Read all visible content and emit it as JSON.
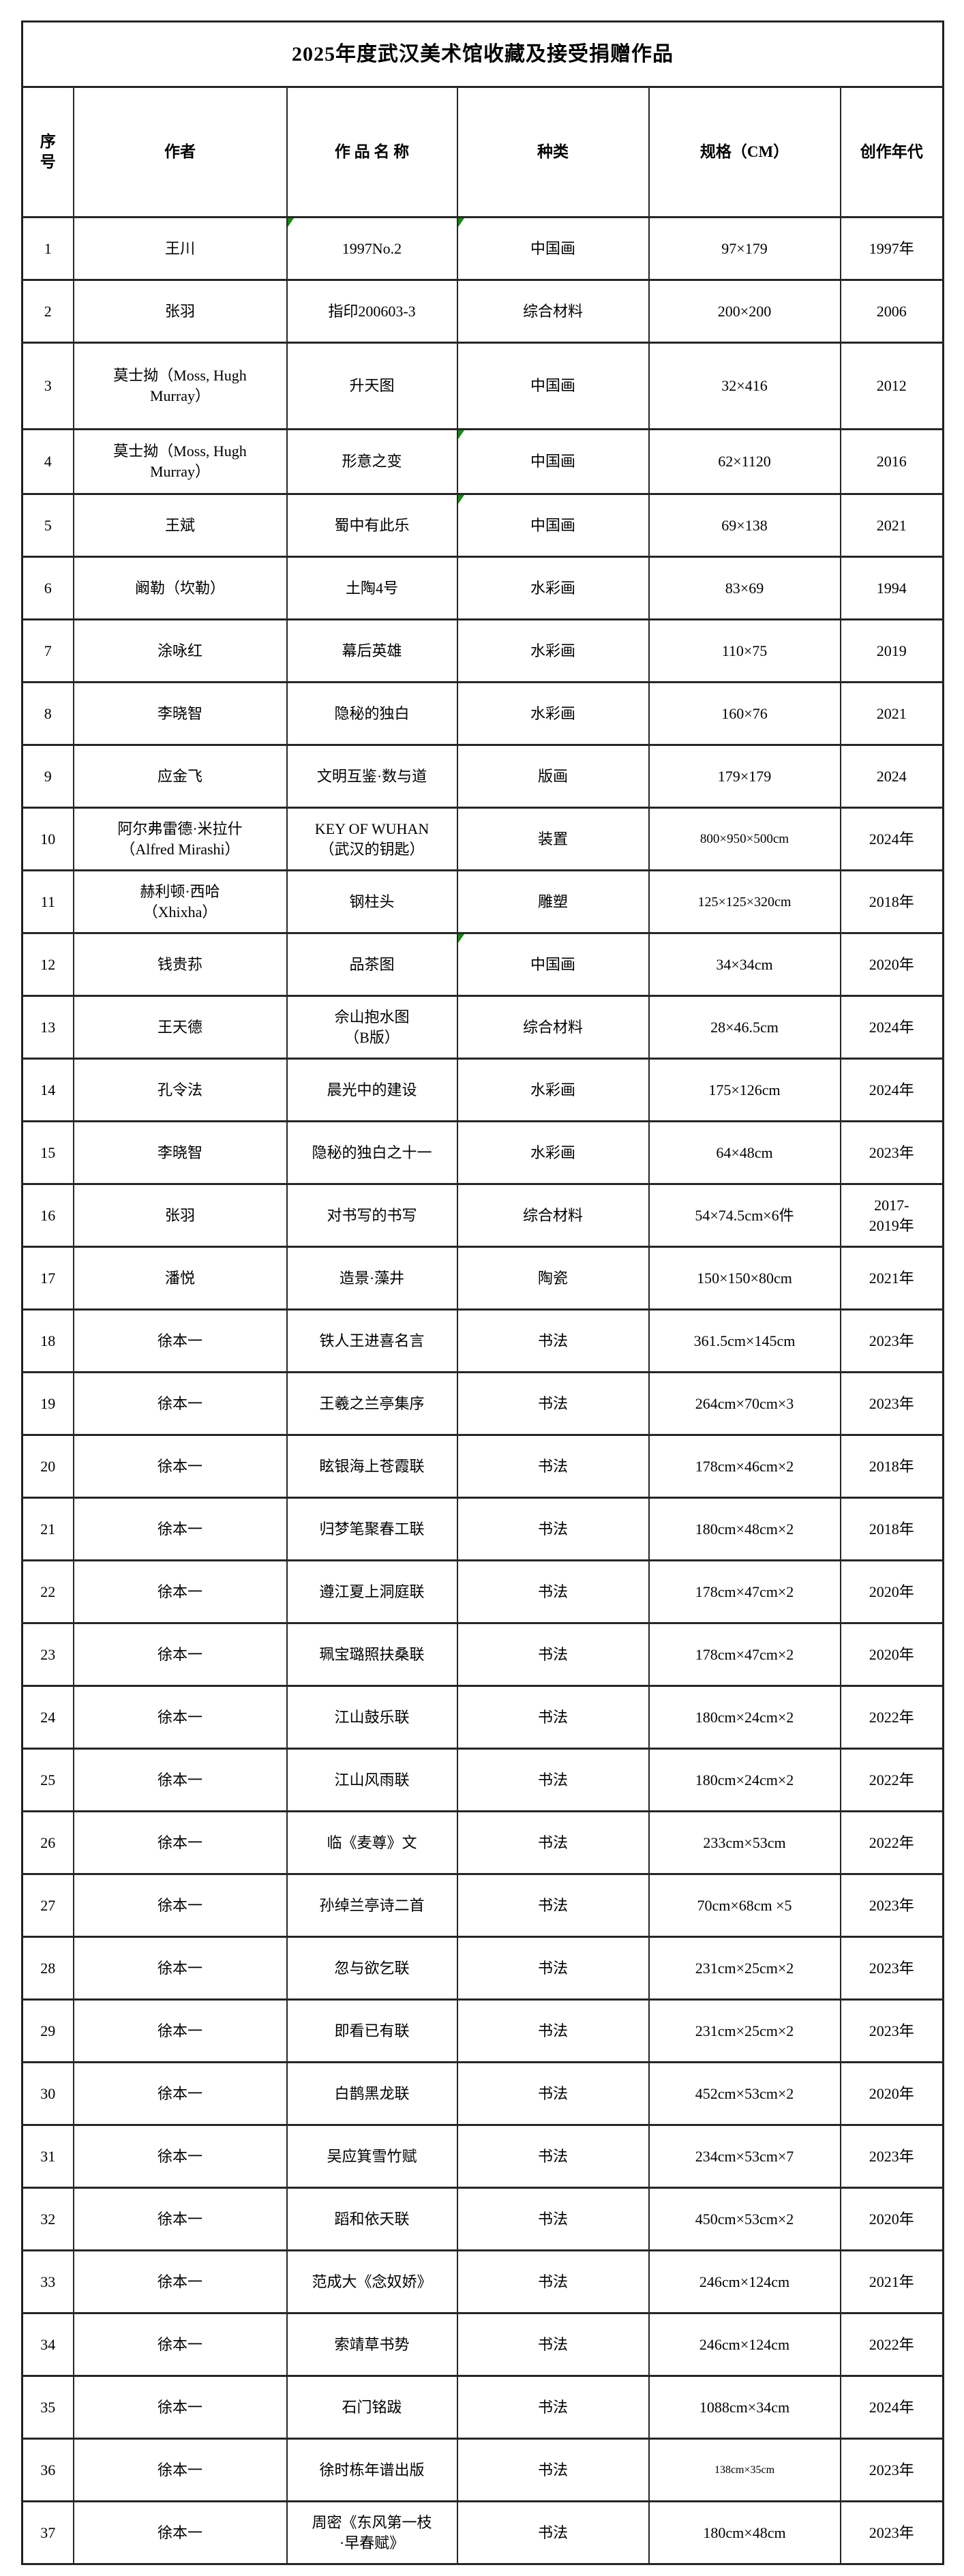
{
  "title": "2025年度武汉美术馆收藏及接受捐赠作品",
  "colors": {
    "background": "#ffffff",
    "border": "#262626",
    "text": "#000000",
    "corner_mark_green": "#168a16"
  },
  "table": {
    "columns": [
      "序\n号",
      "作者",
      "作 品 名 称",
      "种类",
      "规格（CM）",
      "创作年代"
    ],
    "rows": [
      {
        "no": "1",
        "author": "王川",
        "name": "1997No.2",
        "type": "中国画",
        "spec": "97×179",
        "year": "1997年"
      },
      {
        "no": "2",
        "author": "张羽",
        "name": "指印200603-3",
        "type": "综合材料",
        "spec": "200×200",
        "year": "2006"
      },
      {
        "no": "3",
        "author": "莫士拗（Moss, Hugh\nMurray）",
        "name": "升天图",
        "type": "中国画",
        "spec": "32×416",
        "year": "2012"
      },
      {
        "no": "4",
        "author": "莫士拗（Moss, Hugh\nMurray）",
        "name": "形意之变",
        "type": "中国画",
        "spec": "62×1120",
        "year": "2016"
      },
      {
        "no": "5",
        "author": "王斌",
        "name": "蜀中有此乐",
        "type": "中国画",
        "spec": "69×138",
        "year": "2021"
      },
      {
        "no": "6",
        "author": "阚勒（坎勒）",
        "name": "土陶4号",
        "type": "水彩画",
        "spec": "83×69",
        "year": "1994"
      },
      {
        "no": "7",
        "author": "涂咏红",
        "name": "幕后英雄",
        "type": "水彩画",
        "spec": "110×75",
        "year": "2019"
      },
      {
        "no": "8",
        "author": "李晓智",
        "name": "隐秘的独白",
        "type": "水彩画",
        "spec": "160×76",
        "year": "2021"
      },
      {
        "no": "9",
        "author": "应金飞",
        "name": "文明互鉴·数与道",
        "type": "版画",
        "spec": "179×179",
        "year": "2024"
      },
      {
        "no": "10",
        "author": "阿尔弗雷德·米拉什\n（Alfred Mirashi）",
        "name": "KEY OF WUHAN\n（武汉的钥匙）",
        "type": "装置",
        "spec": "800×950×500cm",
        "year": "2024年"
      },
      {
        "no": "11",
        "author": "赫利顿·西哈\n（Xhixha）",
        "name": "钢柱头",
        "type": "雕塑",
        "spec": "125×125×320cm",
        "year": "2018年"
      },
      {
        "no": "12",
        "author": "钱贵荪",
        "name": "品茶图",
        "type": "中国画",
        "spec": "34×34cm",
        "year": "2020年"
      },
      {
        "no": "13",
        "author": "王天德",
        "name": "佘山抱水图\n（B版）",
        "type": "综合材料",
        "spec": "28×46.5cm",
        "year": "2024年"
      },
      {
        "no": "14",
        "author": "孔令法",
        "name": "晨光中的建设",
        "type": "水彩画",
        "spec": "175×126cm",
        "year": "2024年"
      },
      {
        "no": "15",
        "author": "李晓智",
        "name": "隐秘的独白之十一",
        "type": "水彩画",
        "spec": "64×48cm",
        "year": "2023年"
      },
      {
        "no": "16",
        "author": "张羽",
        "name": "对书写的书写",
        "type": "综合材料",
        "spec": "54×74.5cm×6件",
        "year": "2017-\n2019年"
      },
      {
        "no": "17",
        "author": "潘悦",
        "name": "造景·藻井",
        "type": "陶瓷",
        "spec": "150×150×80cm",
        "year": "2021年"
      },
      {
        "no": "18",
        "author": "徐本一",
        "name": "铁人王进喜名言",
        "type": "书法",
        "spec": "361.5cm×145cm",
        "year": "2023年"
      },
      {
        "no": "19",
        "author": "徐本一",
        "name": "王羲之兰亭集序",
        "type": "书法",
        "spec": "264cm×70cm×3",
        "year": "2023年"
      },
      {
        "no": "20",
        "author": "徐本一",
        "name": "眩银海上苍霞联",
        "type": "书法",
        "spec": "178cm×46cm×2",
        "year": "2018年"
      },
      {
        "no": "21",
        "author": "徐本一",
        "name": "归梦笔聚春工联",
        "type": "书法",
        "spec": "180cm×48cm×2",
        "year": "2018年"
      },
      {
        "no": "22",
        "author": "徐本一",
        "name": "遵江夏上洞庭联",
        "type": "书法",
        "spec": "178cm×47cm×2",
        "year": "2020年"
      },
      {
        "no": "23",
        "author": "徐本一",
        "name": "珮宝璐照扶桑联",
        "type": "书法",
        "spec": "178cm×47cm×2",
        "year": "2020年"
      },
      {
        "no": "24",
        "author": "徐本一",
        "name": "江山鼓乐联",
        "type": "书法",
        "spec": "180cm×24cm×2",
        "year": "2022年"
      },
      {
        "no": "25",
        "author": "徐本一",
        "name": "江山风雨联",
        "type": "书法",
        "spec": "180cm×24cm×2",
        "year": "2022年"
      },
      {
        "no": "26",
        "author": "徐本一",
        "name": "临《麦尊》文",
        "type": "书法",
        "spec": "233cm×53cm",
        "year": "2022年"
      },
      {
        "no": "27",
        "author": "徐本一",
        "name": "孙绰兰亭诗二首",
        "type": "书法",
        "spec": "70cm×68cm ×5",
        "year": "2023年"
      },
      {
        "no": "28",
        "author": "徐本一",
        "name": "忽与欲乞联",
        "type": "书法",
        "spec": "231cm×25cm×2",
        "year": "2023年"
      },
      {
        "no": "29",
        "author": "徐本一",
        "name": "即看已有联",
        "type": "书法",
        "spec": "231cm×25cm×2",
        "year": "2023年"
      },
      {
        "no": "30",
        "author": "徐本一",
        "name": "白鹊黑龙联",
        "type": "书法",
        "spec": "452cm×53cm×2",
        "year": "2020年"
      },
      {
        "no": "31",
        "author": "徐本一",
        "name": "吴应箕雪竹赋",
        "type": "书法",
        "spec": "234cm×53cm×7",
        "year": "2023年"
      },
      {
        "no": "32",
        "author": "徐本一",
        "name": "蹈和依天联",
        "type": "书法",
        "spec": "450cm×53cm×2",
        "year": "2020年"
      },
      {
        "no": "33",
        "author": "徐本一",
        "name": "范成大《念奴娇》",
        "type": "书法",
        "spec": "246cm×124cm",
        "year": "2021年"
      },
      {
        "no": "34",
        "author": "徐本一",
        "name": "索靖草书势",
        "type": "书法",
        "spec": "246cm×124cm",
        "year": "2022年"
      },
      {
        "no": "35",
        "author": "徐本一",
        "name": "石门铭跋",
        "type": "书法",
        "spec": "1088cm×34cm",
        "year": "2024年"
      },
      {
        "no": "36",
        "author": "徐本一",
        "name": "徐时栋年谱出版",
        "type": "书法",
        "spec": "138cm×35cm",
        "year": "2023年"
      },
      {
        "no": "37",
        "author": "徐本一",
        "name": "周密《东风第一枝\n·早春赋》",
        "type": "书法",
        "spec": "180cm×48cm",
        "year": "2023年"
      }
    ],
    "corner_marks": [
      {
        "row": 1,
        "col": "name"
      },
      {
        "row": 1,
        "col": "type"
      },
      {
        "row": 4,
        "col": "type"
      },
      {
        "row": 5,
        "col": "type"
      },
      {
        "row": 12,
        "col": "type"
      }
    ]
  }
}
